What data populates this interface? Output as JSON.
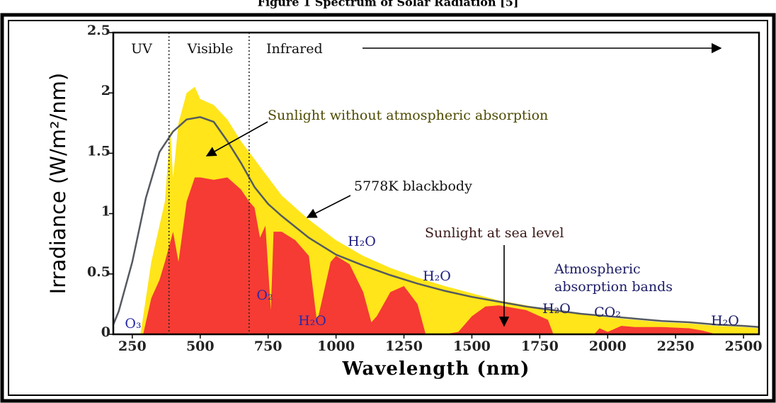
{
  "chart_data": {
    "type": "area",
    "title": "Figure 1 Spectrum of Solar Radiation [5]",
    "x_label": "Wavelength (nm)",
    "y_label": "Irradiance (W/m²/nm)",
    "xlim": [
      180,
      2557
    ],
    "ylim": [
      0,
      2.5
    ],
    "xticks": [
      250,
      500,
      750,
      1000,
      1250,
      1500,
      1750,
      2000,
      2250,
      2500
    ],
    "yticks": [
      0,
      0.5,
      1,
      1.5,
      2,
      2.5
    ],
    "band_dividers": [
      385,
      680
    ],
    "series": [
      {
        "name": "Sunlight without atmospheric absorption",
        "kind": "area",
        "color": "#ffe51a",
        "x": [
          280,
          300,
          320,
          350,
          370,
          390,
          400,
          420,
          450,
          480,
          500,
          550,
          600,
          650,
          700,
          750,
          800,
          900,
          1000,
          1100,
          1200,
          1300,
          1400,
          1500,
          1600,
          1700,
          1800,
          1900,
          2000,
          2100,
          2200,
          2300,
          2400,
          2500,
          2557
        ],
        "values": [
          0,
          0.3,
          0.6,
          0.9,
          1.1,
          1.7,
          1.3,
          1.75,
          2.0,
          2.05,
          1.95,
          1.9,
          1.78,
          1.6,
          1.45,
          1.3,
          1.15,
          0.95,
          0.78,
          0.65,
          0.55,
          0.47,
          0.4,
          0.34,
          0.28,
          0.24,
          0.2,
          0.17,
          0.14,
          0.12,
          0.1,
          0.09,
          0.07,
          0.06,
          0.05
        ]
      },
      {
        "name": "Sunlight at sea level",
        "kind": "area",
        "color": "#f53b33",
        "x": [
          290,
          320,
          350,
          370,
          400,
          420,
          450,
          480,
          500,
          550,
          600,
          650,
          680,
          700,
          720,
          740,
          760,
          770,
          800,
          850,
          900,
          930,
          950,
          980,
          1000,
          1050,
          1100,
          1130,
          1150,
          1200,
          1250,
          1300,
          1330,
          1400,
          1450,
          1500,
          1550,
          1600,
          1700,
          1780,
          1800,
          1950,
          1970,
          2000,
          2050,
          2100,
          2200,
          2300,
          2350,
          2400,
          2557
        ],
        "values": [
          0,
          0.3,
          0.45,
          0.6,
          0.85,
          0.6,
          1.1,
          1.3,
          1.3,
          1.28,
          1.3,
          1.2,
          1.1,
          1.05,
          0.8,
          0.9,
          0.2,
          0.85,
          0.85,
          0.78,
          0.65,
          0.1,
          0.3,
          0.6,
          0.65,
          0.58,
          0.35,
          0.1,
          0.15,
          0.35,
          0.4,
          0.25,
          0,
          0,
          0.02,
          0.15,
          0.23,
          0.24,
          0.2,
          0.12,
          0,
          0,
          0.05,
          0.02,
          0.07,
          0.06,
          0.06,
          0.05,
          0.03,
          0,
          0
        ]
      },
      {
        "name": "5778K blackbody",
        "kind": "line",
        "color": "#555a60",
        "x": [
          180,
          200,
          250,
          300,
          350,
          400,
          450,
          500,
          550,
          600,
          650,
          700,
          750,
          800,
          900,
          1000,
          1100,
          1200,
          1300,
          1400,
          1500,
          1600,
          1700,
          1800,
          1900,
          2000,
          2100,
          2200,
          2300,
          2400,
          2500,
          2557
        ],
        "values": [
          0.08,
          0.19,
          0.6,
          1.13,
          1.51,
          1.68,
          1.78,
          1.8,
          1.76,
          1.6,
          1.42,
          1.22,
          1.08,
          0.98,
          0.8,
          0.66,
          0.57,
          0.49,
          0.42,
          0.36,
          0.31,
          0.27,
          0.23,
          0.2,
          0.17,
          0.15,
          0.13,
          0.11,
          0.1,
          0.08,
          0.07,
          0.06
        ]
      }
    ],
    "annotations": [
      "UV",
      "Visible",
      "Infrared",
      "Sunlight without atmospheric absorption",
      "5778K blackbody",
      "Sunlight at sea level",
      "Atmospheric",
      "absorption bands",
      "H₂O",
      "H₂O",
      "O₂",
      "H₂O",
      "O₃",
      "H₂O",
      "CO₂",
      "H₂O"
    ]
  }
}
